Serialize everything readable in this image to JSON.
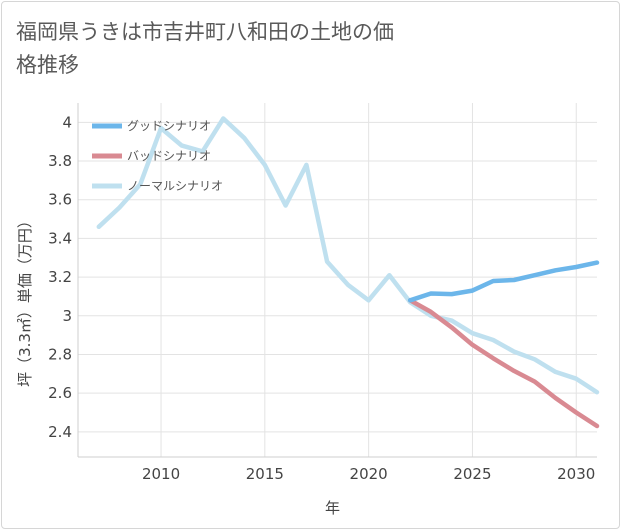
{
  "title": "福岡県うきは市吉井町八和田の土地の価格推移",
  "chart_data": {
    "type": "line",
    "title": "福岡県うきは市吉井町八和田の土地の価格推移",
    "xlabel": "年",
    "ylabel": "坪（3.3㎡）単価（万円）",
    "xlim": [
      2006,
      2031
    ],
    "ylim": [
      2.27,
      4.1
    ],
    "xticks": [
      2010,
      2015,
      2020,
      2025,
      2030
    ],
    "yticks": [
      2.4,
      2.6,
      2.8,
      3,
      3.2,
      3.4,
      3.6,
      3.8,
      4
    ],
    "ytick_labels": [
      "2.4",
      "2.6",
      "2.8",
      "3",
      "3.2",
      "3.4",
      "3.6",
      "3.8",
      "4"
    ],
    "grid": true,
    "legend_position": "top-left",
    "series": [
      {
        "name": "グッドシナリオ",
        "color": "#6cb6ea",
        "x": [
          2022,
          2023,
          2024,
          2025,
          2026,
          2027,
          2028,
          2029,
          2030,
          2031
        ],
        "y": [
          3.08,
          3.115,
          3.112,
          3.13,
          3.18,
          3.185,
          3.21,
          3.235,
          3.252,
          3.275
        ]
      },
      {
        "name": "バッドシナリオ",
        "color": "#d98a92",
        "x": [
          2022,
          2023,
          2024,
          2025,
          2026,
          2027,
          2028,
          2029,
          2030,
          2031
        ],
        "y": [
          3.08,
          3.02,
          2.94,
          2.85,
          2.78,
          2.715,
          2.66,
          2.575,
          2.5,
          2.43
        ]
      },
      {
        "name": "ノーマルシナリオ",
        "color": "#bfe0ef",
        "x": [
          2007,
          2008,
          2009,
          2010,
          2011,
          2012,
          2013,
          2014,
          2015,
          2016,
          2017,
          2018,
          2019,
          2020,
          2021,
          2022,
          2023,
          2024,
          2025,
          2026,
          2027,
          2028,
          2029,
          2030,
          2031
        ],
        "y": [
          3.46,
          3.56,
          3.68,
          3.97,
          3.88,
          3.85,
          4.02,
          3.92,
          3.78,
          3.57,
          3.78,
          3.28,
          3.16,
          3.08,
          3.21,
          3.07,
          3.0,
          2.975,
          2.91,
          2.875,
          2.815,
          2.775,
          2.71,
          2.675,
          2.605
        ]
      }
    ]
  }
}
